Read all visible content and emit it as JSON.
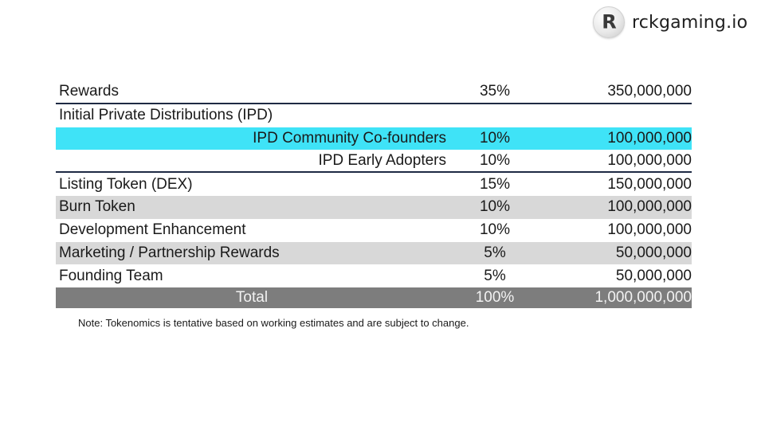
{
  "brand": {
    "logo_letter": "R",
    "name": "rckgaming.io"
  },
  "table": {
    "rows": [
      {
        "label": "Rewards",
        "percent": "35%",
        "amount": "350,000,000"
      },
      {
        "label": "Initial Private Distributions (IPD)",
        "percent": "",
        "amount": ""
      },
      {
        "label": "IPD Community Co-founders",
        "percent": "10%",
        "amount": "100,000,000"
      },
      {
        "label": "IPD Early Adopters",
        "percent": "10%",
        "amount": "100,000,000"
      },
      {
        "label": "Listing Token (DEX)",
        "percent": "15%",
        "amount": "150,000,000"
      },
      {
        "label": "Burn Token",
        "percent": "10%",
        "amount": "100,000,000"
      },
      {
        "label": "Development Enhancement",
        "percent": "10%",
        "amount": "100,000,000"
      },
      {
        "label": "Marketing / Partnership Rewards",
        "percent": "5%",
        "amount": "50,000,000"
      },
      {
        "label": "Founding Team",
        "percent": "5%",
        "amount": "50,000,000"
      }
    ],
    "total": {
      "label": "Total",
      "percent": "100%",
      "amount": "1,000,000,000"
    }
  },
  "note": "Note: Tokenomics is tentative based on working estimates and are subject to change.",
  "colors": {
    "highlight": "#3fe3f7",
    "stripe": "#d8d8d8",
    "total_bg": "#7d7d7d",
    "rule": "#1e2a44"
  }
}
